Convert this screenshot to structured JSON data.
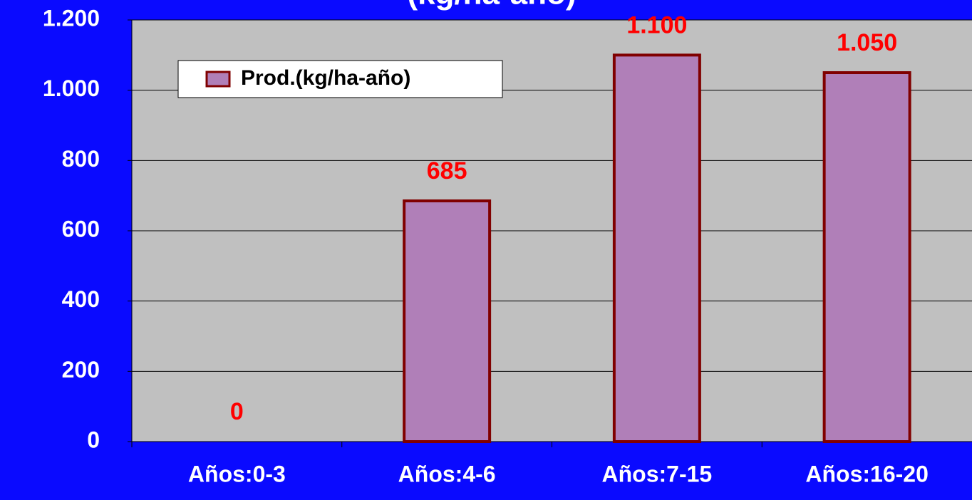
{
  "chart_data": {
    "type": "bar",
    "title": "(kg/ha-año)",
    "categories": [
      "Años:0-3",
      "Años:4-6",
      "Años:7-15",
      "Años:16-20"
    ],
    "series": [
      {
        "name": "Prod.(kg/ha-año)",
        "color": "#b07fb8",
        "values": [
          0,
          685,
          1100,
          1050
        ],
        "value_labels": [
          "0",
          "685",
          "1.100",
          "1.050"
        ]
      }
    ],
    "ylim": [
      0,
      1200
    ],
    "yticks": [
      0,
      200,
      400,
      600,
      800,
      {
        "value": 1000,
        "label": "1.000"
      },
      {
        "value": 1200,
        "label": "1.200"
      }
    ],
    "grid": true,
    "legend": "upper left"
  }
}
